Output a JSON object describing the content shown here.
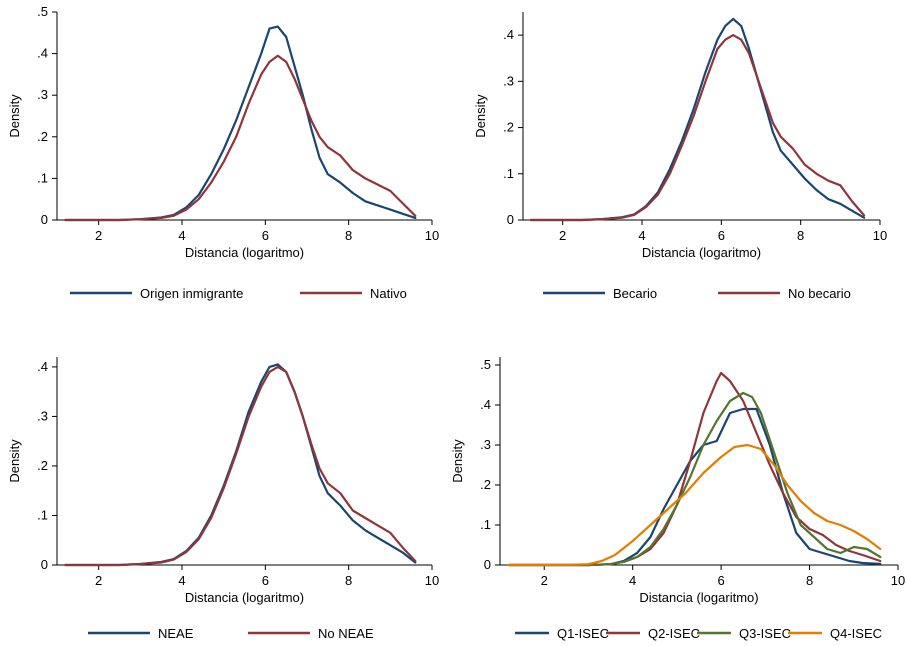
{
  "chart_data": [
    {
      "type": "line",
      "xlabel": "Distancia (logaritmo)",
      "ylabel": "Density",
      "xlim": [
        1,
        10
      ],
      "ylim": [
        0,
        0.5
      ],
      "xticks": [
        2,
        4,
        6,
        8,
        10
      ],
      "xtick_labels": [
        "2",
        "4",
        "6",
        "8",
        "10"
      ],
      "yticks": [
        0,
        0.1,
        0.2,
        0.3,
        0.4,
        0.5
      ],
      "ytick_labels": [
        "0",
        ".1",
        ".2",
        ".3",
        ".4",
        ".5"
      ],
      "grid": false,
      "legend_position": "bottom",
      "series": [
        {
          "name": "Origen inmigrante",
          "color": "#1a476f",
          "x": [
            1.2,
            1.5,
            2.0,
            2.5,
            3.0,
            3.5,
            3.8,
            4.1,
            4.4,
            4.7,
            5.0,
            5.3,
            5.6,
            5.9,
            6.1,
            6.3,
            6.5,
            6.7,
            6.9,
            7.1,
            7.3,
            7.5,
            7.8,
            8.1,
            8.4,
            8.7,
            9.0,
            9.3,
            9.6
          ],
          "y": [
            0.0,
            0.0,
            0.0,
            0.0,
            0.002,
            0.006,
            0.012,
            0.03,
            0.06,
            0.11,
            0.17,
            0.24,
            0.32,
            0.4,
            0.46,
            0.465,
            0.44,
            0.37,
            0.3,
            0.22,
            0.15,
            0.11,
            0.09,
            0.065,
            0.045,
            0.035,
            0.025,
            0.015,
            0.005
          ]
        },
        {
          "name": "Nativo",
          "color": "#90353b",
          "x": [
            1.2,
            1.5,
            2.0,
            2.5,
            3.0,
            3.5,
            3.8,
            4.1,
            4.4,
            4.7,
            5.0,
            5.3,
            5.6,
            5.9,
            6.1,
            6.3,
            6.5,
            6.7,
            6.9,
            7.1,
            7.3,
            7.5,
            7.8,
            8.1,
            8.4,
            8.7,
            9.0,
            9.3,
            9.6
          ],
          "y": [
            0.0,
            0.0,
            0.0,
            0.0,
            0.002,
            0.005,
            0.01,
            0.025,
            0.05,
            0.09,
            0.14,
            0.2,
            0.28,
            0.35,
            0.38,
            0.395,
            0.38,
            0.34,
            0.29,
            0.24,
            0.2,
            0.175,
            0.155,
            0.12,
            0.1,
            0.085,
            0.07,
            0.04,
            0.01
          ]
        }
      ]
    },
    {
      "type": "line",
      "xlabel": "Distancia (logaritmo)",
      "ylabel": "Density",
      "xlim": [
        1,
        10
      ],
      "ylim": [
        0,
        0.45
      ],
      "xticks": [
        2,
        4,
        6,
        8,
        10
      ],
      "xtick_labels": [
        "2",
        "4",
        "6",
        "8",
        "10"
      ],
      "yticks": [
        0,
        0.1,
        0.2,
        0.3,
        0.4
      ],
      "ytick_labels": [
        "0",
        ".1",
        ".2",
        ".3",
        ".4"
      ],
      "grid": false,
      "legend_position": "bottom",
      "series": [
        {
          "name": "Becario",
          "color": "#1a476f",
          "x": [
            1.2,
            1.5,
            2.0,
            2.5,
            3.0,
            3.5,
            3.8,
            4.1,
            4.4,
            4.7,
            5.0,
            5.3,
            5.6,
            5.9,
            6.1,
            6.3,
            6.5,
            6.7,
            6.9,
            7.1,
            7.3,
            7.5,
            7.8,
            8.1,
            8.4,
            8.7,
            9.0,
            9.3,
            9.6
          ],
          "y": [
            0.0,
            0.0,
            0.0,
            0.0,
            0.002,
            0.006,
            0.012,
            0.03,
            0.06,
            0.11,
            0.17,
            0.24,
            0.32,
            0.39,
            0.42,
            0.435,
            0.42,
            0.37,
            0.31,
            0.25,
            0.19,
            0.15,
            0.12,
            0.09,
            0.065,
            0.045,
            0.035,
            0.02,
            0.005
          ]
        },
        {
          "name": "No becario",
          "color": "#90353b",
          "x": [
            1.2,
            1.5,
            2.0,
            2.5,
            3.0,
            3.5,
            3.8,
            4.1,
            4.4,
            4.7,
            5.0,
            5.3,
            5.6,
            5.9,
            6.1,
            6.3,
            6.5,
            6.7,
            6.9,
            7.1,
            7.3,
            7.5,
            7.8,
            8.1,
            8.4,
            8.7,
            9.0,
            9.3,
            9.6
          ],
          "y": [
            0.0,
            0.0,
            0.0,
            0.0,
            0.002,
            0.005,
            0.011,
            0.028,
            0.055,
            0.1,
            0.16,
            0.225,
            0.3,
            0.37,
            0.39,
            0.4,
            0.39,
            0.36,
            0.31,
            0.26,
            0.21,
            0.18,
            0.155,
            0.12,
            0.1,
            0.085,
            0.075,
            0.04,
            0.01
          ]
        }
      ]
    },
    {
      "type": "line",
      "xlabel": "Distancia (logaritmo)",
      "ylabel": "Density",
      "xlim": [
        1,
        10
      ],
      "ylim": [
        0,
        0.42
      ],
      "xticks": [
        2,
        4,
        6,
        8,
        10
      ],
      "xtick_labels": [
        "2",
        "4",
        "6",
        "8",
        "10"
      ],
      "yticks": [
        0,
        0.1,
        0.2,
        0.3,
        0.4
      ],
      "ytick_labels": [
        "0",
        ".1",
        ".2",
        ".3",
        ".4"
      ],
      "grid": false,
      "legend_position": "bottom",
      "series": [
        {
          "name": "NEAE",
          "color": "#1a476f",
          "x": [
            1.2,
            1.5,
            2.0,
            2.5,
            3.0,
            3.5,
            3.8,
            4.1,
            4.4,
            4.7,
            5.0,
            5.3,
            5.6,
            5.9,
            6.1,
            6.3,
            6.5,
            6.7,
            6.9,
            7.1,
            7.3,
            7.5,
            7.8,
            8.1,
            8.4,
            8.7,
            9.0,
            9.3,
            9.6
          ],
          "y": [
            0.0,
            0.0,
            0.0,
            0.0,
            0.002,
            0.006,
            0.012,
            0.028,
            0.055,
            0.1,
            0.16,
            0.23,
            0.31,
            0.37,
            0.4,
            0.405,
            0.39,
            0.35,
            0.3,
            0.24,
            0.18,
            0.145,
            0.12,
            0.09,
            0.07,
            0.055,
            0.04,
            0.025,
            0.005
          ]
        },
        {
          "name": "No NEAE",
          "color": "#90353b",
          "x": [
            1.2,
            1.5,
            2.0,
            2.5,
            3.0,
            3.5,
            3.8,
            4.1,
            4.4,
            4.7,
            5.0,
            5.3,
            5.6,
            5.9,
            6.1,
            6.3,
            6.5,
            6.7,
            6.9,
            7.1,
            7.3,
            7.5,
            7.8,
            8.1,
            8.4,
            8.7,
            9.0,
            9.3,
            9.6
          ],
          "y": [
            0.0,
            0.0,
            0.0,
            0.0,
            0.002,
            0.005,
            0.011,
            0.026,
            0.052,
            0.095,
            0.155,
            0.225,
            0.3,
            0.36,
            0.39,
            0.4,
            0.39,
            0.35,
            0.3,
            0.245,
            0.195,
            0.165,
            0.145,
            0.11,
            0.095,
            0.08,
            0.065,
            0.035,
            0.008
          ]
        }
      ]
    },
    {
      "type": "line",
      "xlabel": "Distancia (logaritmo)",
      "ylabel": "Density",
      "xlim": [
        1,
        10
      ],
      "ylim": [
        0,
        0.52
      ],
      "xticks": [
        2,
        4,
        6,
        8,
        10
      ],
      "xtick_labels": [
        "2",
        "4",
        "6",
        "8",
        "10"
      ],
      "yticks": [
        0,
        0.1,
        0.2,
        0.3,
        0.4,
        0.5
      ],
      "ytick_labels": [
        "0",
        ".1",
        ".2",
        ".3",
        ".4",
        ".5"
      ],
      "grid": false,
      "legend_position": "bottom",
      "series": [
        {
          "name": "Q1-ISEC",
          "color": "#1a476f",
          "x": [
            1.2,
            2.0,
            2.5,
            3.0,
            3.5,
            3.8,
            4.1,
            4.4,
            4.7,
            5.0,
            5.3,
            5.6,
            5.9,
            6.2,
            6.5,
            6.8,
            7.1,
            7.4,
            7.7,
            8.0,
            8.3,
            8.6,
            8.9,
            9.2,
            9.6
          ],
          "y": [
            0.0,
            0.0,
            0.0,
            0.0,
            0.002,
            0.01,
            0.03,
            0.07,
            0.14,
            0.2,
            0.26,
            0.3,
            0.31,
            0.38,
            0.39,
            0.39,
            0.3,
            0.18,
            0.08,
            0.04,
            0.03,
            0.02,
            0.01,
            0.005,
            0.003
          ]
        },
        {
          "name": "Q2-ISEC",
          "color": "#90353b",
          "x": [
            1.2,
            2.0,
            2.5,
            3.0,
            3.5,
            3.8,
            4.1,
            4.4,
            4.7,
            5.0,
            5.3,
            5.6,
            5.9,
            6.0,
            6.2,
            6.5,
            6.8,
            7.1,
            7.4,
            7.7,
            8.0,
            8.3,
            8.6,
            8.9,
            9.2,
            9.6
          ],
          "y": [
            0.0,
            0.0,
            0.0,
            0.0,
            0.002,
            0.008,
            0.02,
            0.04,
            0.08,
            0.15,
            0.26,
            0.38,
            0.46,
            0.48,
            0.46,
            0.41,
            0.33,
            0.25,
            0.18,
            0.12,
            0.09,
            0.075,
            0.05,
            0.035,
            0.025,
            0.01
          ]
        },
        {
          "name": "Q3-ISEC",
          "color": "#55752f",
          "x": [
            1.2,
            2.0,
            2.5,
            3.0,
            3.5,
            3.8,
            4.1,
            4.4,
            4.7,
            5.0,
            5.3,
            5.6,
            5.9,
            6.2,
            6.5,
            6.7,
            6.9,
            7.2,
            7.5,
            7.8,
            8.1,
            8.4,
            8.7,
            9.0,
            9.3,
            9.6
          ],
          "y": [
            0.0,
            0.0,
            0.0,
            0.0,
            0.002,
            0.008,
            0.02,
            0.045,
            0.09,
            0.15,
            0.22,
            0.3,
            0.36,
            0.41,
            0.43,
            0.42,
            0.38,
            0.28,
            0.18,
            0.1,
            0.07,
            0.04,
            0.03,
            0.045,
            0.04,
            0.02
          ]
        },
        {
          "name": "Q4-ISEC",
          "color": "#e37e00",
          "x": [
            1.2,
            2.0,
            2.5,
            3.0,
            3.3,
            3.6,
            4.0,
            4.4,
            4.8,
            5.2,
            5.6,
            6.0,
            6.3,
            6.6,
            6.9,
            7.2,
            7.5,
            7.8,
            8.1,
            8.4,
            8.7,
            9.0,
            9.3,
            9.6
          ],
          "y": [
            0.0,
            0.0,
            0.0,
            0.002,
            0.01,
            0.025,
            0.06,
            0.1,
            0.14,
            0.18,
            0.23,
            0.27,
            0.295,
            0.3,
            0.29,
            0.25,
            0.2,
            0.16,
            0.13,
            0.11,
            0.1,
            0.085,
            0.065,
            0.04
          ]
        }
      ]
    }
  ]
}
